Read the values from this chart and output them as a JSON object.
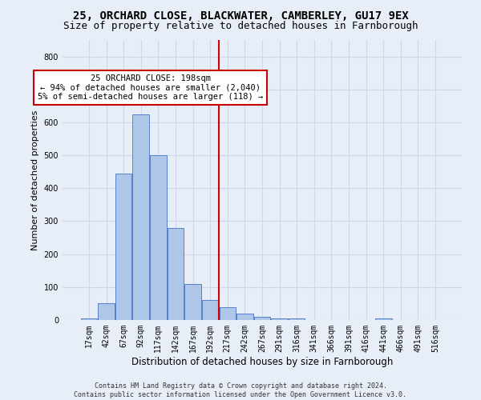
{
  "title_line1": "25, ORCHARD CLOSE, BLACKWATER, CAMBERLEY, GU17 9EX",
  "title_line2": "Size of property relative to detached houses in Farnborough",
  "xlabel": "Distribution of detached houses by size in Farnborough",
  "ylabel": "Number of detached properties",
  "footnote": "Contains HM Land Registry data © Crown copyright and database right 2024.\nContains public sector information licensed under the Open Government Licence v3.0.",
  "bin_labels": [
    "17sqm",
    "42sqm",
    "67sqm",
    "92sqm",
    "117sqm",
    "142sqm",
    "167sqm",
    "192sqm",
    "217sqm",
    "242sqm",
    "267sqm",
    "291sqm",
    "316sqm",
    "341sqm",
    "366sqm",
    "391sqm",
    "416sqm",
    "441sqm",
    "466sqm",
    "491sqm",
    "516sqm"
  ],
  "bar_heights": [
    5,
    50,
    445,
    625,
    500,
    280,
    110,
    60,
    40,
    20,
    10,
    5,
    5,
    0,
    0,
    0,
    0,
    5,
    0,
    0,
    0
  ],
  "bar_color": "#aec6e8",
  "bar_edge_color": "#4472c4",
  "grid_color": "#d0d8e8",
  "background_color": "#e8eef8",
  "vline_x_index": 7.5,
  "vline_color": "#cc0000",
  "annotation_text": "25 ORCHARD CLOSE: 198sqm\n← 94% of detached houses are smaller (2,040)\n5% of semi-detached houses are larger (118) →",
  "annotation_box_color": "white",
  "annotation_box_edge_color": "#cc0000",
  "ylim": [
    0,
    850
  ],
  "yticks": [
    0,
    100,
    200,
    300,
    400,
    500,
    600,
    700,
    800
  ],
  "title_fontsize": 10,
  "subtitle_fontsize": 9,
  "tick_fontsize": 7,
  "ylabel_fontsize": 8,
  "xlabel_fontsize": 8.5,
  "annotation_fontsize": 7.5,
  "footnote_fontsize": 6
}
